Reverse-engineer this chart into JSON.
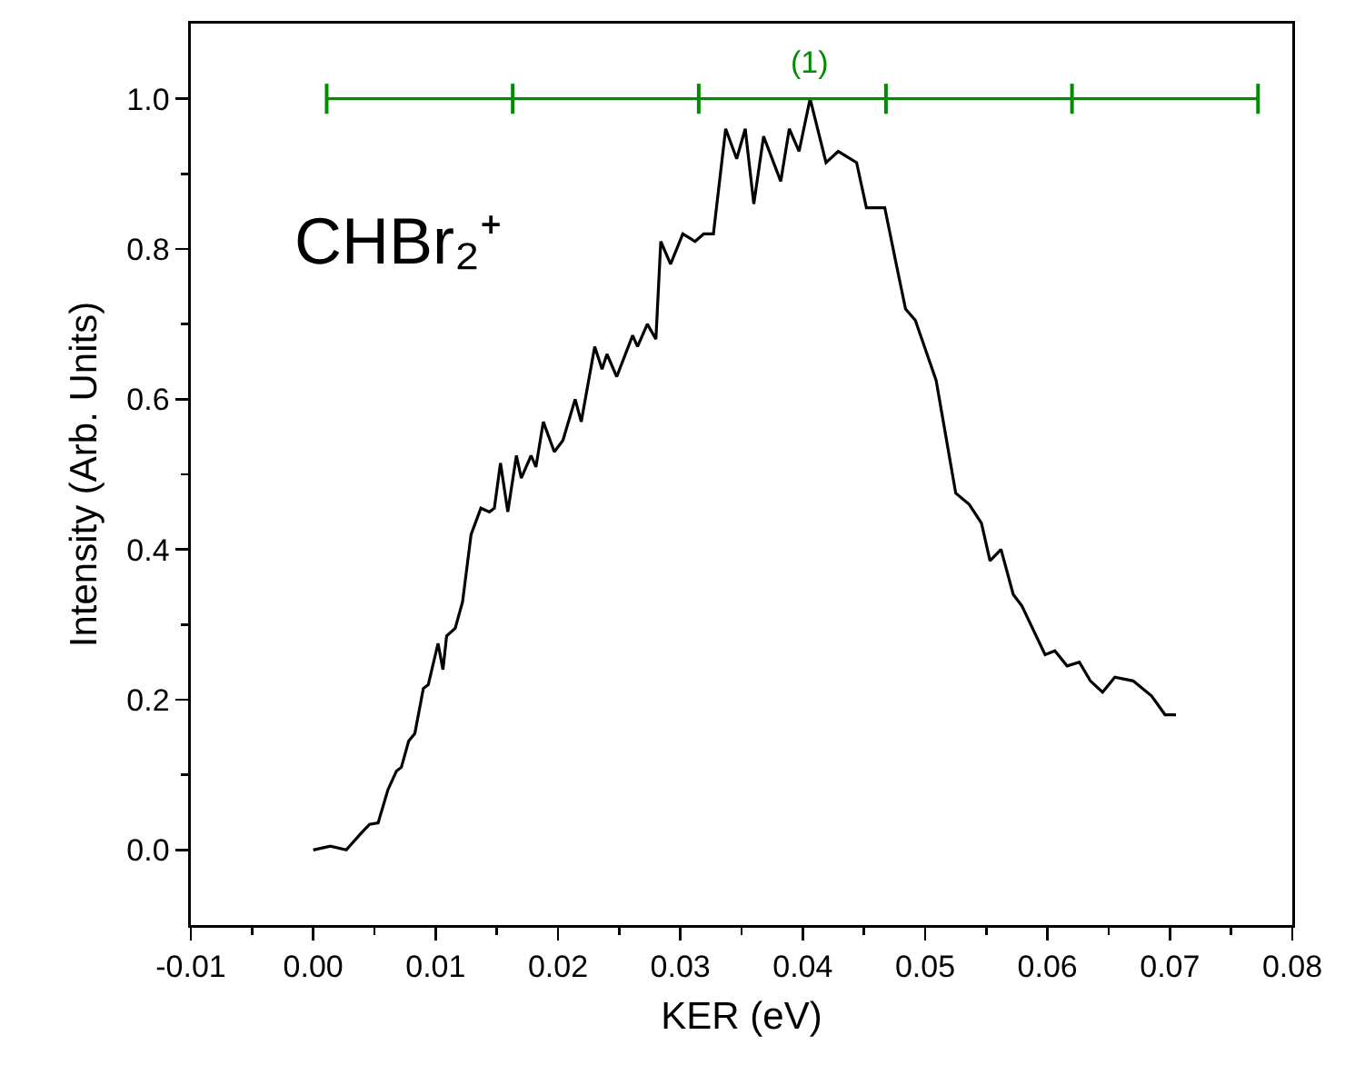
{
  "chart_data": {
    "type": "line",
    "xlabel": "KER (eV)",
    "ylabel": "Intensity (Arb. Units)",
    "annotations": [
      "CHBr₂⁺",
      {
        "text": "(1)",
        "x": 0.0405,
        "y": 1
      }
    ],
    "xlim": [
      -0.01,
      0.08
    ],
    "ylim": [
      -0.1,
      1.1
    ],
    "xticks": [
      {
        "value": -0.01,
        "label": "-0.01"
      },
      {
        "value": -0.005,
        "label": null
      },
      {
        "value": 0,
        "label": "0.00"
      },
      {
        "value": 0.005,
        "label": null
      },
      {
        "value": 0.01,
        "label": "0.01"
      },
      {
        "value": 0.015,
        "label": null
      },
      {
        "value": 0.02,
        "label": "0.02"
      },
      {
        "value": 0.025,
        "label": null
      },
      {
        "value": 0.03,
        "label": "0.03"
      },
      {
        "value": 0.035,
        "label": null
      },
      {
        "value": 0.04,
        "label": "0.04"
      },
      {
        "value": 0.045,
        "label": null
      },
      {
        "value": 0.05,
        "label": "0.05"
      },
      {
        "value": 0.055,
        "label": null
      },
      {
        "value": 0.06,
        "label": "0.06"
      },
      {
        "value": 0.065,
        "label": null
      },
      {
        "value": 0.07,
        "label": "0.07"
      },
      {
        "value": 0.075,
        "label": null
      },
      {
        "value": 0.08,
        "label": "0.08"
      }
    ],
    "yticks": [
      {
        "value": 0,
        "label": "0.0"
      },
      {
        "value": 0.1,
        "label": null
      },
      {
        "value": 0.2,
        "label": "0.2"
      },
      {
        "value": 0.3,
        "label": null
      },
      {
        "value": 0.4,
        "label": "0.4"
      },
      {
        "value": 0.5,
        "label": null
      },
      {
        "value": 0.6,
        "label": "0.6"
      },
      {
        "value": 0.7,
        "label": null
      },
      {
        "value": 0.8,
        "label": "0.8"
      },
      {
        "value": 0.9,
        "label": null
      },
      {
        "value": 1,
        "label": "1.0"
      }
    ],
    "grid": false,
    "marker": "none",
    "line_style": "solid",
    "series": [
      {
        "color": "#000000",
        "x": [
          0.0,
          0.0014,
          0.0027,
          0.0039,
          0.0046,
          0.0053,
          0.0061,
          0.0068,
          0.0072,
          0.0078,
          0.0083,
          0.009,
          0.0094,
          0.0102,
          0.0106,
          0.0109,
          0.0116,
          0.0122,
          0.0129,
          0.0137,
          0.0144,
          0.0148,
          0.0153,
          0.0159,
          0.0166,
          0.017,
          0.0178,
          0.0182,
          0.0188,
          0.0197,
          0.0204,
          0.0214,
          0.0219,
          0.023,
          0.0236,
          0.024,
          0.0248,
          0.0261,
          0.0265,
          0.0273,
          0.028,
          0.0284,
          0.0292,
          0.0302,
          0.0312,
          0.0319,
          0.0327,
          0.0337,
          0.0346,
          0.0353,
          0.036,
          0.0368,
          0.0382,
          0.0389,
          0.0397,
          0.0406,
          0.0419,
          0.0429,
          0.0444,
          0.0452,
          0.0467,
          0.0477,
          0.0484,
          0.0492,
          0.0509,
          0.0525,
          0.0536,
          0.0546,
          0.0553,
          0.0562,
          0.0572,
          0.0579,
          0.0598,
          0.0606,
          0.0616,
          0.0626,
          0.0635,
          0.0645,
          0.0655,
          0.067,
          0.0685,
          0.0696,
          0.0705
        ],
        "values": [
          0.0,
          0.005,
          0.0,
          0.022,
          0.034,
          0.036,
          0.08,
          0.105,
          0.11,
          0.145,
          0.155,
          0.215,
          0.22,
          0.275,
          0.24,
          0.285,
          0.295,
          0.33,
          0.42,
          0.455,
          0.45,
          0.455,
          0.515,
          0.45,
          0.525,
          0.495,
          0.525,
          0.51,
          0.57,
          0.53,
          0.545,
          0.6,
          0.57,
          0.67,
          0.64,
          0.66,
          0.63,
          0.685,
          0.67,
          0.7,
          0.68,
          0.81,
          0.78,
          0.82,
          0.81,
          0.82,
          0.82,
          0.96,
          0.92,
          0.96,
          0.86,
          0.95,
          0.89,
          0.96,
          0.93,
          1.0,
          0.915,
          0.93,
          0.915,
          0.855,
          0.855,
          0.775,
          0.72,
          0.705,
          0.625,
          0.475,
          0.46,
          0.435,
          0.385,
          0.4,
          0.34,
          0.325,
          0.26,
          0.265,
          0.245,
          0.25,
          0.225,
          0.21,
          0.23,
          0.225,
          0.205,
          0.18,
          0.18
        ]
      },
      {
        "color": "#008c00",
        "errors": [
          0.02,
          0.02,
          0.02,
          0.02,
          0.02,
          0.02
        ],
        "x": [
          0.0011,
          0.0163,
          0.0315,
          0.0468,
          0.062,
          0.0772
        ],
        "values": [
          1,
          1,
          1,
          1,
          1,
          1
        ]
      }
    ]
  }
}
